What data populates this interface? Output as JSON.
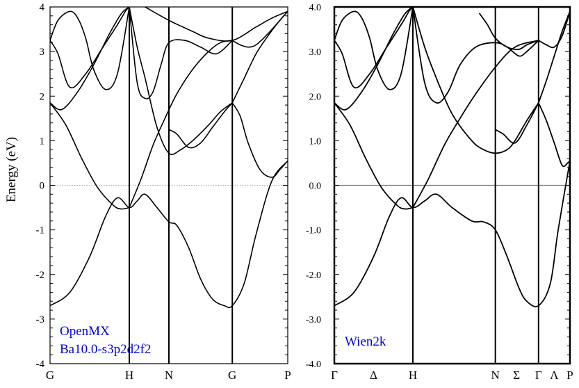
{
  "figure": {
    "ylabel": "Energy (eV)"
  },
  "chart_data": [
    {
      "type": "line",
      "ylim": [
        -4,
        4
      ],
      "yticks": [
        -4,
        -3,
        -2,
        -1,
        0,
        1,
        2,
        3,
        4
      ],
      "ytick_labels": [
        "-4",
        "-3",
        "-2",
        "-1",
        "0",
        "1",
        "2",
        "3",
        "4"
      ],
      "kpoints": [
        0,
        1,
        1.5,
        2.3,
        3.0
      ],
      "kpoint_labels": [
        "G",
        "H",
        "N",
        "G",
        "P"
      ],
      "xlim": [
        0,
        3.0
      ],
      "grid": false,
      "fermi_line": 0,
      "annotation_lines": [
        "OpenMX",
        "Ba10.0-s3p2d2f2"
      ],
      "annotation_color": "#0000dd",
      "series": [
        {
          "x": [
            0,
            0.25,
            0.5,
            0.7,
            0.85,
            1,
            1.1,
            1.2,
            1.35,
            1.5,
            1.6,
            1.75,
            1.9,
            2.05,
            2.2,
            2.3,
            2.45,
            2.6,
            2.8,
            3.0
          ],
          "y": [
            -2.7,
            -2.4,
            -1.6,
            -0.7,
            -0.28,
            -0.5,
            -0.35,
            -0.2,
            -0.5,
            -0.82,
            -0.9,
            -1.4,
            -2.1,
            -2.55,
            -2.7,
            -2.7,
            -2.2,
            -1.1,
            0.1,
            0.55
          ]
        },
        {
          "x": [
            0,
            0.2,
            0.4,
            0.6,
            0.8,
            0.9,
            1.0
          ],
          "y": [
            1.85,
            1.35,
            0.6,
            -0.05,
            -0.45,
            -0.53,
            -0.5
          ]
        },
        {
          "x": [
            1.0,
            1.15,
            1.3,
            1.45,
            1.6,
            1.8,
            2.0,
            2.15,
            2.3
          ],
          "y": [
            -0.5,
            0.15,
            0.9,
            1.5,
            2.05,
            2.6,
            3.0,
            3.2,
            3.25
          ]
        },
        {
          "x": [
            0,
            0.15,
            0.35,
            0.55,
            0.75,
            0.9,
            1.0
          ],
          "y": [
            1.85,
            1.7,
            2.1,
            2.7,
            3.4,
            3.85,
            4.0
          ]
        },
        {
          "x": [
            0,
            0.1,
            0.25,
            0.45,
            0.65,
            0.85,
            0.95,
            1.0
          ],
          "y": [
            3.25,
            2.95,
            2.2,
            2.5,
            3.05,
            3.6,
            3.9,
            4.0
          ]
        },
        {
          "x": [
            0,
            0.1,
            0.25,
            0.35,
            0.45,
            0.55,
            0.7,
            0.85,
            1.0
          ],
          "y": [
            3.25,
            3.7,
            3.9,
            3.75,
            3.3,
            2.6,
            2.15,
            2.5,
            4.0
          ]
        },
        {
          "x": [
            1.0,
            1.1,
            1.2,
            1.3,
            1.4,
            1.5,
            1.7,
            1.9,
            2.1,
            2.3
          ],
          "y": [
            4.0,
            2.3,
            1.95,
            2.1,
            2.7,
            3.2,
            3.25,
            3.1,
            2.95,
            3.25
          ]
        },
        {
          "x": [
            1.0,
            1.1,
            1.2,
            1.35,
            1.5,
            1.65,
            1.8,
            2.0,
            2.15,
            2.3
          ],
          "y": [
            4.0,
            3.1,
            2.4,
            1.3,
            0.72,
            0.8,
            1.0,
            1.35,
            1.65,
            1.85
          ]
        },
        {
          "x": [
            1.5,
            1.6,
            1.75,
            1.9,
            2.05,
            2.2,
            2.3
          ],
          "y": [
            1.25,
            1.15,
            0.85,
            0.95,
            1.3,
            1.65,
            1.85
          ]
        },
        {
          "x": [
            2.3,
            2.4,
            2.5,
            2.65,
            2.8,
            2.9,
            3.0
          ],
          "y": [
            1.85,
            1.55,
            0.95,
            0.35,
            0.18,
            0.35,
            0.55
          ]
        },
        {
          "x": [
            2.3,
            2.45,
            2.6,
            2.75,
            2.9,
            3.0
          ],
          "y": [
            1.85,
            2.4,
            2.95,
            3.35,
            3.7,
            3.9
          ]
        },
        {
          "x": [
            2.3,
            2.4,
            2.5,
            2.6,
            2.75,
            3.0
          ],
          "y": [
            3.25,
            3.15,
            3.1,
            3.15,
            3.4,
            3.9
          ]
        },
        {
          "x": [
            1.2,
            1.5,
            1.8,
            2.0,
            2.3,
            2.6,
            2.8,
            3.0
          ],
          "y": [
            4.0,
            3.7,
            3.45,
            3.3,
            3.25,
            3.55,
            3.75,
            3.9
          ]
        }
      ]
    },
    {
      "type": "line",
      "ylim": [
        -4.0,
        4.0
      ],
      "yticks": [
        -4,
        -3,
        -2,
        -1,
        0,
        1,
        2,
        3,
        4
      ],
      "ytick_labels": [
        "-4.0",
        "-3.0",
        "-2.0",
        "-1.0",
        "0.0",
        "1.0",
        "2.0",
        "3.0",
        "4.0"
      ],
      "kpoints": [
        0,
        1,
        2.05,
        2.6,
        3.0
      ],
      "kpoint_labels": [
        "Γ",
        "H",
        "N",
        "Γ",
        "P"
      ],
      "extra_labels": [
        {
          "text": "Δ",
          "x": 0.5
        },
        {
          "text": "Σ",
          "x": 2.32
        },
        {
          "text": "Λ",
          "x": 2.8
        }
      ],
      "xlim": [
        0,
        3.0
      ],
      "grid": false,
      "fermi_line": 0,
      "annotation_lines": [
        "Wien2k"
      ],
      "annotation_color": "#0000dd",
      "series": [
        {
          "x": [
            0,
            0.25,
            0.5,
            0.7,
            0.85,
            1,
            1.15,
            1.3,
            1.5,
            1.75,
            1.9,
            2.05,
            2.2,
            2.35,
            2.45,
            2.6,
            2.75,
            2.85,
            3.0
          ],
          "y": [
            -2.7,
            -2.4,
            -1.6,
            -0.7,
            -0.28,
            -0.5,
            -0.35,
            -0.2,
            -0.5,
            -0.8,
            -0.82,
            -1.0,
            -1.6,
            -2.3,
            -2.6,
            -2.7,
            -2.2,
            -1.0,
            0.55
          ]
        },
        {
          "x": [
            0,
            0.2,
            0.4,
            0.6,
            0.8,
            0.9,
            1.0
          ],
          "y": [
            1.85,
            1.35,
            0.6,
            -0.05,
            -0.45,
            -0.53,
            -0.5
          ]
        },
        {
          "x": [
            1.0,
            1.2,
            1.4,
            1.6,
            1.8,
            2.05,
            2.3,
            2.6
          ],
          "y": [
            -0.5,
            0.15,
            0.9,
            1.5,
            2.05,
            2.65,
            3.1,
            3.25
          ]
        },
        {
          "x": [
            0,
            0.15,
            0.35,
            0.55,
            0.75,
            0.9,
            1.0
          ],
          "y": [
            1.85,
            1.7,
            2.1,
            2.7,
            3.4,
            3.85,
            4.0
          ]
        },
        {
          "x": [
            0,
            0.1,
            0.25,
            0.45,
            0.65,
            0.85,
            0.95,
            1.0
          ],
          "y": [
            3.25,
            2.95,
            2.2,
            2.5,
            3.05,
            3.6,
            3.9,
            4.0
          ]
        },
        {
          "x": [
            0,
            0.1,
            0.25,
            0.35,
            0.45,
            0.55,
            0.7,
            0.85,
            1.0
          ],
          "y": [
            3.25,
            3.7,
            3.9,
            3.75,
            3.3,
            2.6,
            2.15,
            2.5,
            4.0
          ]
        },
        {
          "x": [
            1.0,
            1.15,
            1.3,
            1.45,
            1.6,
            1.8,
            2.05,
            2.2,
            2.35,
            2.45,
            2.6
          ],
          "y": [
            4.0,
            2.3,
            1.85,
            2.1,
            2.7,
            3.1,
            3.2,
            3.1,
            2.9,
            3.0,
            3.25
          ]
        },
        {
          "x": [
            1.0,
            1.15,
            1.3,
            1.5,
            1.75,
            1.9,
            2.05,
            2.2,
            2.3,
            2.45,
            2.6
          ],
          "y": [
            4.0,
            3.1,
            2.4,
            1.6,
            1.0,
            0.8,
            0.72,
            0.8,
            1.0,
            1.45,
            1.85
          ]
        },
        {
          "x": [
            2.05,
            2.15,
            2.3,
            2.45,
            2.6
          ],
          "y": [
            1.25,
            1.15,
            0.95,
            1.35,
            1.85
          ]
        },
        {
          "x": [
            2.6,
            2.7,
            2.8,
            2.9,
            2.97,
            3.0
          ],
          "y": [
            1.85,
            1.45,
            0.95,
            0.45,
            0.5,
            0.55
          ]
        },
        {
          "x": [
            2.6,
            2.7,
            2.8,
            2.9,
            3.0
          ],
          "y": [
            1.85,
            2.35,
            2.9,
            3.45,
            3.9
          ]
        },
        {
          "x": [
            2.6,
            2.7,
            2.8,
            2.9,
            3.0
          ],
          "y": [
            3.25,
            3.15,
            3.1,
            3.35,
            3.9
          ]
        },
        {
          "x": [
            1.85,
            1.95,
            2.05,
            2.2,
            2.35,
            2.45,
            2.6
          ],
          "y": [
            3.85,
            3.6,
            3.3,
            3.1,
            3.05,
            3.15,
            3.25
          ]
        }
      ]
    }
  ]
}
